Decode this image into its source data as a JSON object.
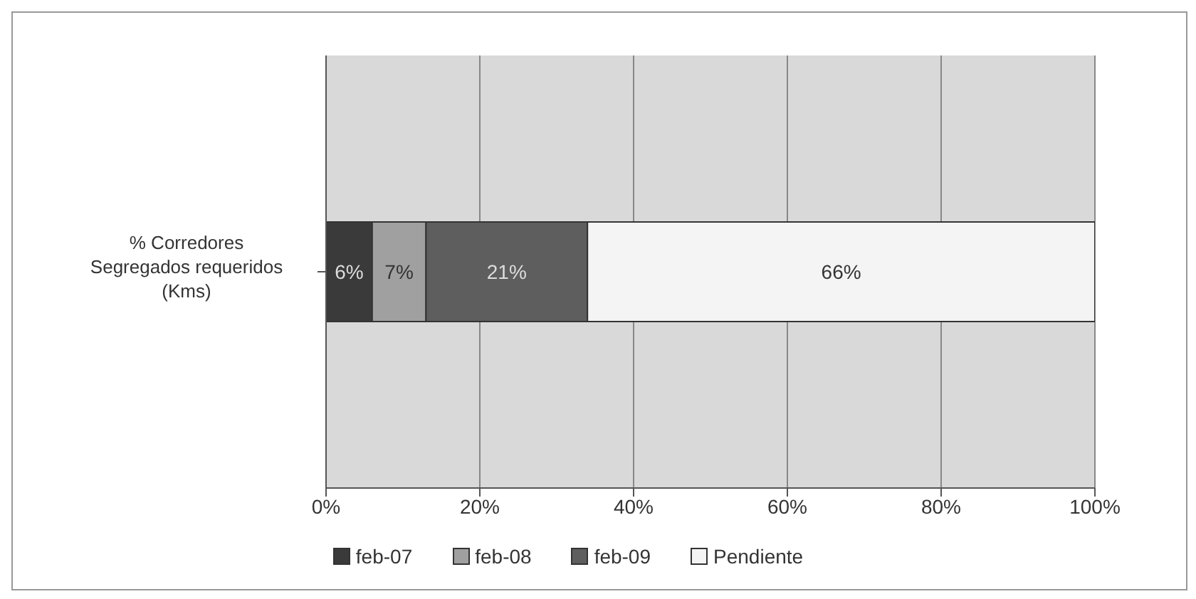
{
  "chart_data": {
    "type": "bar",
    "orientation": "horizontal",
    "stacked": true,
    "categories": [
      "% Corredores Segregados requeridos (Kms)"
    ],
    "series": [
      {
        "name": "feb-07",
        "color": "#3a3a3a",
        "values": [
          6
        ],
        "value_labels": [
          "6%"
        ]
      },
      {
        "name": "feb-08",
        "color": "#a0a0a0",
        "values": [
          7
        ],
        "value_labels": [
          "7%"
        ]
      },
      {
        "name": "feb-09",
        "color": "#5e5e5e",
        "values": [
          21
        ],
        "value_labels": [
          "21%"
        ]
      },
      {
        "name": "Pendiente",
        "color": "#f4f4f4",
        "values": [
          66
        ],
        "value_labels": [
          "66%"
        ]
      }
    ],
    "xlim": [
      0,
      100
    ],
    "xticks": [
      {
        "value": 0,
        "label": "0%"
      },
      {
        "value": 20,
        "label": "20%"
      },
      {
        "value": 40,
        "label": "40%"
      },
      {
        "value": 60,
        "label": "60%"
      },
      {
        "value": 80,
        "label": "80%"
      },
      {
        "value": 100,
        "label": "100%"
      }
    ],
    "grid": "x",
    "legend": "bottom"
  }
}
